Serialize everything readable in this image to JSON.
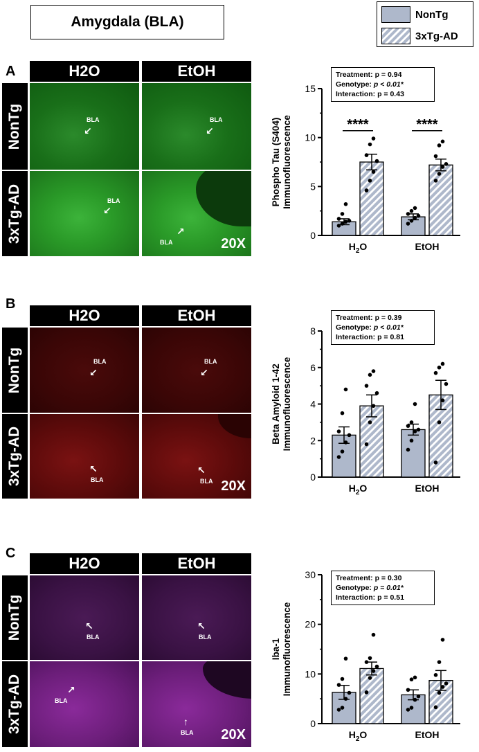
{
  "title": "Amygdala (BLA)",
  "legend": [
    {
      "name": "NonTg",
      "fill": "#aeb8cb",
      "pattern": "solid"
    },
    {
      "name": "3xTg-AD",
      "fill": "#aeb8cb",
      "pattern": "hatched"
    }
  ],
  "columns": [
    "H2O",
    "EtOH"
  ],
  "rows": [
    "NonTg",
    "3xTg-AD"
  ],
  "region_label": "BLA",
  "magnification": "20X",
  "panels": [
    {
      "letter": "A",
      "stain": "green",
      "stats": {
        "treatment": "Treatment: p = 0.94",
        "genotype_pre": "Genotype: ",
        "genotype_val": "p < 0.01*",
        "interaction": "Interaction: p = 0.43"
      }
    },
    {
      "letter": "B",
      "stain": "red",
      "stats": {
        "treatment": "Treatment: p = 0.39",
        "genotype_pre": "Genotype: ",
        "genotype_val": "p < 0.01*",
        "interaction": "Interaction: p = 0.81"
      }
    },
    {
      "letter": "C",
      "stain": "magenta",
      "stats": {
        "treatment": "Treatment: p = 0.30",
        "genotype_pre": "Genotype: ",
        "genotype_val": "p = 0.01*",
        "interaction": "Interaction: p = 0.51"
      }
    }
  ],
  "colors": {
    "bar_fill": "#aeb8cb",
    "hatch": "#ffffff"
  },
  "chart_data": [
    {
      "type": "bar",
      "ylabel": [
        "Phospho Tau (S404)",
        "Immunofluorescence"
      ],
      "ylim": [
        0,
        15
      ],
      "yticks": [
        0,
        5,
        10,
        15
      ],
      "categories": [
        "H2O",
        "EtOH"
      ],
      "series": [
        {
          "name": "NonTg",
          "values": [
            1.4,
            1.9
          ],
          "sem": [
            0.3,
            0.3
          ],
          "points": [
            [
              1.0,
              1.2,
              1.4,
              1.5,
              1.7,
              2.2,
              3.2
            ],
            [
              1.2,
              1.5,
              1.8,
              2.0,
              2.2,
              2.5,
              2.8
            ]
          ]
        },
        {
          "name": "3xTg-AD",
          "values": [
            7.5,
            7.2
          ],
          "sem": [
            0.8,
            0.6
          ],
          "points": [
            [
              4.6,
              5.6,
              6.5,
              7.6,
              8.2,
              9.3,
              9.9
            ],
            [
              5.6,
              6.3,
              7.0,
              7.3,
              8.1,
              9.2,
              9.6
            ]
          ]
        }
      ],
      "significance": [
        "****",
        "****"
      ]
    },
    {
      "type": "bar",
      "ylabel": [
        "Beta Amyloid 1-42",
        "Immunofluorescence"
      ],
      "ylim": [
        0,
        8
      ],
      "yticks": [
        0,
        2,
        4,
        6,
        8
      ],
      "categories": [
        "H2O",
        "EtOH"
      ],
      "series": [
        {
          "name": "NonTg",
          "values": [
            2.3,
            2.6
          ],
          "sem": [
            0.45,
            0.3
          ],
          "points": [
            [
              1.1,
              1.4,
              1.9,
              2.3,
              2.5,
              3.5,
              4.8
            ],
            [
              1.5,
              2.0,
              2.5,
              2.6,
              2.8,
              3.0,
              4.0
            ]
          ]
        },
        {
          "name": "3xTg-AD",
          "values": [
            3.9,
            4.5
          ],
          "sem": [
            0.6,
            0.8
          ],
          "points": [
            [
              1.8,
              3.0,
              3.9,
              4.6,
              5.0,
              5.6,
              5.8
            ],
            [
              0.8,
              3.0,
              4.2,
              5.1,
              5.7,
              6.0,
              6.2
            ]
          ]
        }
      ],
      "significance": []
    },
    {
      "type": "bar",
      "ylabel": [
        "Iba-1",
        "Immunofluorescence"
      ],
      "ylim": [
        0,
        30
      ],
      "yticks": [
        0,
        10,
        20,
        30
      ],
      "categories": [
        "H2O",
        "EtOH"
      ],
      "series": [
        {
          "name": "NonTg",
          "values": [
            6.3,
            5.8
          ],
          "sem": [
            1.4,
            1.0
          ],
          "points": [
            [
              2.8,
              3.2,
              5.0,
              6.2,
              7.8,
              9.0,
              13.1
            ],
            [
              2.8,
              3.2,
              4.8,
              5.5,
              6.8,
              8.9,
              9.3
            ]
          ]
        },
        {
          "name": "3xTg-AD",
          "values": [
            11.1,
            8.7
          ],
          "sem": [
            1.3,
            2.0
          ],
          "points": [
            [
              6.3,
              9.2,
              10.6,
              11.5,
              12.4,
              13.2,
              17.9
            ],
            [
              3.3,
              6.2,
              7.4,
              8.1,
              9.8,
              12.4,
              16.9
            ]
          ]
        }
      ],
      "significance": []
    }
  ]
}
